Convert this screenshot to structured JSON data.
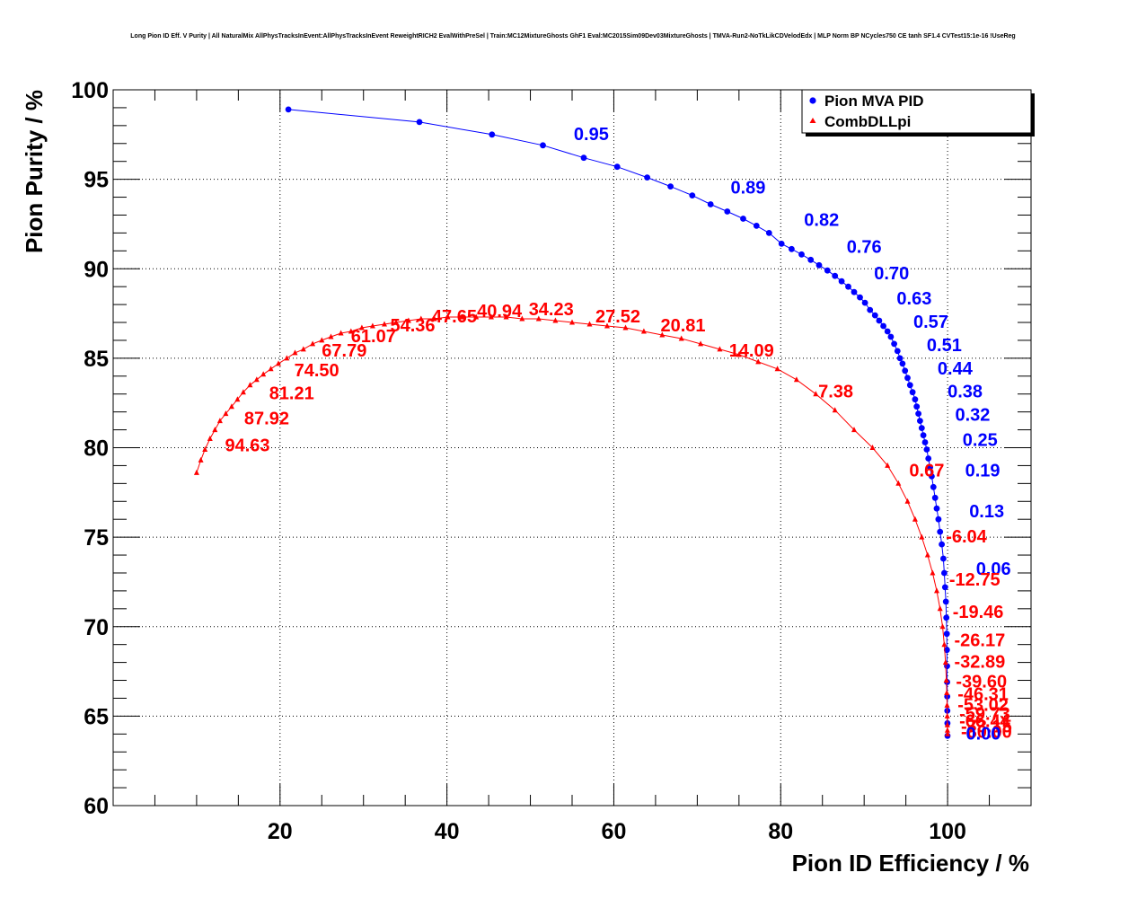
{
  "chart_data": {
    "type": "scatter",
    "title": "Long Pion ID Eff. V Purity | All NaturalMix AllPhysTracksInEvent:AllPhysTracksInEvent ReweightRICH2 EvalWithPreSel | Train:MC12MixtureGhosts GhF1 Eval:MC2015Sim09Dev03MixtureGhosts | TMVA-Run2-NoTkLikCDVelodEdx | MLP Norm BP NCycles750 CE tanh SF1.4 CVTest15:1e-16 !UseReg",
    "xlabel": "Pion ID Efficiency / %",
    "ylabel": "Pion Purity / %",
    "xlim": [
      0,
      110
    ],
    "ylim": [
      60,
      100
    ],
    "x_ticks": [
      "20",
      "40",
      "60",
      "80",
      "100"
    ],
    "y_ticks": [
      "60",
      "65",
      "70",
      "75",
      "80",
      "85",
      "90",
      "95",
      "100"
    ],
    "grid": true,
    "legend_position": "top-right",
    "series": [
      {
        "name": "Pion MVA PID",
        "color": "#0000ff",
        "marker": "circle",
        "x": [
          21.0,
          36.7,
          45.4,
          51.5,
          56.4,
          60.4,
          64.0,
          66.8,
          69.4,
          71.6,
          73.6,
          75.5,
          77.1,
          78.6,
          80.1,
          81.3,
          82.5,
          83.6,
          84.6,
          85.6,
          86.5,
          87.3,
          88.1,
          88.8,
          89.5,
          90.1,
          90.7,
          91.3,
          91.8,
          92.3,
          92.8,
          93.2,
          93.6,
          94.0,
          94.3,
          94.6,
          94.9,
          95.2,
          95.5,
          95.8,
          96.1,
          96.3,
          96.5,
          96.7,
          96.9,
          97.1,
          97.3,
          97.5,
          97.7,
          97.9,
          98.1,
          98.3,
          98.5,
          98.7,
          98.9,
          99.1,
          99.3,
          99.5,
          99.6,
          99.7,
          99.8,
          99.85,
          99.9,
          99.92,
          99.94,
          99.95,
          99.96,
          99.97,
          99.98,
          99.99
        ],
        "y": [
          98.9,
          98.2,
          97.5,
          96.9,
          96.2,
          95.7,
          95.1,
          94.6,
          94.1,
          93.6,
          93.2,
          92.8,
          92.4,
          92.0,
          91.4,
          91.1,
          90.8,
          90.5,
          90.2,
          89.9,
          89.6,
          89.3,
          89.0,
          88.7,
          88.4,
          88.1,
          87.7,
          87.4,
          87.1,
          86.8,
          86.5,
          86.2,
          85.8,
          85.4,
          85.0,
          84.7,
          84.3,
          83.9,
          83.5,
          83.1,
          82.7,
          82.3,
          81.9,
          81.5,
          81.1,
          80.7,
          80.3,
          79.9,
          79.4,
          78.9,
          78.4,
          77.8,
          77.2,
          76.6,
          76.0,
          75.3,
          74.6,
          73.8,
          73.0,
          72.2,
          71.4,
          70.5,
          69.6,
          68.7,
          67.8,
          66.9,
          66.1,
          65.3,
          64.6,
          63.9
        ]
      },
      {
        "name": "CombDLLpi",
        "color": "#ff0000",
        "marker": "triangle",
        "x": [
          10.0,
          10.5,
          11.0,
          11.6,
          12.2,
          12.8,
          13.5,
          14.2,
          14.9,
          15.6,
          16.4,
          17.2,
          18.0,
          18.9,
          19.8,
          20.8,
          21.8,
          22.8,
          23.9,
          25.0,
          26.1,
          27.3,
          28.5,
          29.8,
          31.1,
          32.5,
          33.9,
          35.4,
          36.9,
          38.5,
          40.1,
          41.8,
          43.5,
          45.3,
          47.1,
          49.0,
          51.0,
          53.0,
          55.0,
          57.1,
          59.2,
          61.4,
          63.6,
          65.8,
          68.1,
          70.4,
          72.7,
          75.0,
          77.3,
          79.6,
          81.9,
          84.2,
          86.5,
          88.8,
          91.0,
          92.8,
          94.1,
          95.2,
          96.1,
          96.9,
          97.6,
          98.2,
          98.7,
          99.1,
          99.4,
          99.6,
          99.75,
          99.85,
          99.9,
          99.94,
          99.96,
          99.97,
          99.98,
          99.99
        ],
        "y": [
          78.6,
          79.3,
          79.9,
          80.5,
          81.0,
          81.5,
          81.9,
          82.3,
          82.7,
          83.1,
          83.5,
          83.8,
          84.1,
          84.4,
          84.7,
          85.0,
          85.3,
          85.5,
          85.8,
          86.0,
          86.2,
          86.4,
          86.5,
          86.7,
          86.8,
          86.9,
          87.0,
          87.1,
          87.2,
          87.2,
          87.3,
          87.3,
          87.3,
          87.3,
          87.3,
          87.2,
          87.2,
          87.1,
          87.0,
          86.9,
          86.8,
          86.7,
          86.5,
          86.3,
          86.1,
          85.8,
          85.5,
          85.2,
          84.8,
          84.4,
          83.8,
          83.0,
          82.1,
          81.0,
          80.0,
          79.0,
          78.0,
          77.0,
          76.0,
          75.0,
          74.0,
          73.0,
          72.0,
          71.0,
          70.0,
          69.0,
          68.0,
          67.0,
          66.3,
          65.6,
          65.0,
          64.5,
          64.2,
          64.0
        ]
      }
    ],
    "annotations": [
      {
        "text": "0.95",
        "x": 55.2,
        "y": 97.2,
        "series": "Pion MVA PID"
      },
      {
        "text": "0.89",
        "x": 74.0,
        "y": 94.2,
        "series": "Pion MVA PID"
      },
      {
        "text": "0.82",
        "x": 82.8,
        "y": 92.4,
        "series": "Pion MVA PID"
      },
      {
        "text": "0.76",
        "x": 87.9,
        "y": 90.9,
        "series": "Pion MVA PID"
      },
      {
        "text": "0.70",
        "x": 91.2,
        "y": 89.4,
        "series": "Pion MVA PID"
      },
      {
        "text": "0.63",
        "x": 93.9,
        "y": 88.0,
        "series": "Pion MVA PID"
      },
      {
        "text": "0.57",
        "x": 95.9,
        "y": 86.7,
        "series": "Pion MVA PID"
      },
      {
        "text": "0.51",
        "x": 97.5,
        "y": 85.4,
        "series": "Pion MVA PID"
      },
      {
        "text": "0.44",
        "x": 98.8,
        "y": 84.1,
        "series": "Pion MVA PID"
      },
      {
        "text": "0.38",
        "x": 100.0,
        "y": 82.8,
        "series": "Pion MVA PID"
      },
      {
        "text": "0.32",
        "x": 100.9,
        "y": 81.5,
        "series": "Pion MVA PID"
      },
      {
        "text": "0.25",
        "x": 101.8,
        "y": 80.1,
        "series": "Pion MVA PID"
      },
      {
        "text": "0.19",
        "x": 102.1,
        "y": 78.4,
        "series": "Pion MVA PID"
      },
      {
        "text": "0.13",
        "x": 102.6,
        "y": 76.1,
        "series": "Pion MVA PID"
      },
      {
        "text": "0.06",
        "x": 103.4,
        "y": 72.9,
        "series": "Pion MVA PID"
      },
      {
        "text": "94.63",
        "x": 13.4,
        "y": 79.8,
        "series": "CombDLLpi"
      },
      {
        "text": "87.92",
        "x": 15.7,
        "y": 81.3,
        "series": "CombDLLpi"
      },
      {
        "text": "81.21",
        "x": 18.7,
        "y": 82.7,
        "series": "CombDLLpi"
      },
      {
        "text": "74.50",
        "x": 21.7,
        "y": 84.0,
        "series": "CombDLLpi"
      },
      {
        "text": "67.79",
        "x": 25.0,
        "y": 85.1,
        "series": "CombDLLpi"
      },
      {
        "text": "61.07",
        "x": 28.5,
        "y": 85.9,
        "series": "CombDLLpi"
      },
      {
        "text": "54.36",
        "x": 33.2,
        "y": 86.5,
        "series": "CombDLLpi"
      },
      {
        "text": "47.65",
        "x": 38.2,
        "y": 87.0,
        "series": "CombDLLpi"
      },
      {
        "text": "40.94",
        "x": 43.6,
        "y": 87.3,
        "series": "CombDLLpi"
      },
      {
        "text": "34.23",
        "x": 49.8,
        "y": 87.4,
        "series": "CombDLLpi"
      },
      {
        "text": "27.52",
        "x": 57.8,
        "y": 87.0,
        "series": "CombDLLpi"
      },
      {
        "text": "20.81",
        "x": 65.6,
        "y": 86.5,
        "series": "CombDLLpi"
      },
      {
        "text": "14.09",
        "x": 73.8,
        "y": 85.1,
        "series": "CombDLLpi"
      },
      {
        "text": "7.38",
        "x": 84.5,
        "y": 82.8,
        "series": "CombDLLpi"
      },
      {
        "text": "0.67",
        "x": 95.4,
        "y": 78.4,
        "series": "CombDLLpi"
      },
      {
        "text": "-6.04",
        "x": 99.8,
        "y": 74.7,
        "series": "CombDLLpi"
      },
      {
        "text": "-12.75",
        "x": 100.2,
        "y": 72.3,
        "series": "CombDLLpi"
      },
      {
        "text": "-19.46",
        "x": 100.6,
        "y": 70.5,
        "series": "CombDLLpi"
      },
      {
        "text": "-26.17",
        "x": 100.8,
        "y": 68.9,
        "series": "CombDLLpi"
      },
      {
        "text": "-32.89",
        "x": 100.8,
        "y": 67.7,
        "series": "CombDLLpi"
      },
      {
        "text": "-39.60",
        "x": 101.0,
        "y": 66.6,
        "series": "CombDLLpi"
      },
      {
        "text": "-46.31",
        "x": 101.2,
        "y": 65.9,
        "series": "CombDLLpi"
      },
      {
        "text": "-53.02",
        "x": 101.2,
        "y": 65.3,
        "series": "CombDLLpi"
      },
      {
        "text": "-59.73",
        "x": 101.4,
        "y": 64.8,
        "series": "CombDLLpi"
      },
      {
        "text": "-66.44",
        "x": 101.4,
        "y": 64.4,
        "series": "CombDLLpi"
      },
      {
        "text": "-73.15",
        "x": 101.6,
        "y": 64.1,
        "series": "CombDLLpi"
      },
      {
        "text": "-80.00",
        "x": 101.6,
        "y": 63.8,
        "series": "CombDLLpi"
      },
      {
        "text": "0.00",
        "x": 102.2,
        "y": 63.7,
        "series": "Pion MVA PID"
      }
    ]
  }
}
